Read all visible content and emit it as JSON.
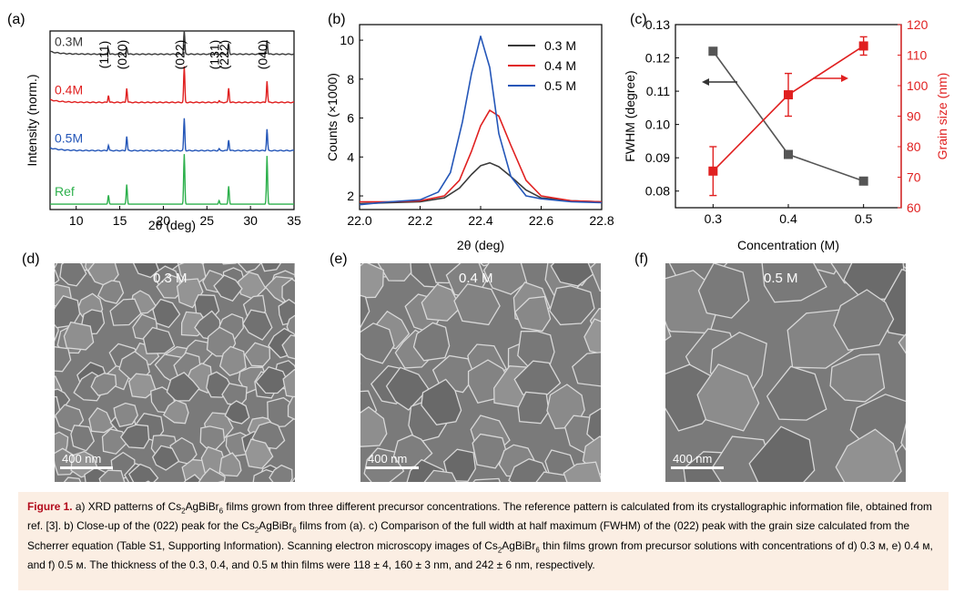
{
  "panel_labels": {
    "a": "(a)",
    "b": "(b)",
    "c": "(c)",
    "d": "(d)",
    "e": "(e)",
    "f": "(f)"
  },
  "chart_data": [
    {
      "type": "line",
      "panel": "(a)",
      "xlabel": "2θ (deg)",
      "ylabel": "Intensity (norm.)",
      "xlim": [
        7,
        35
      ],
      "xticks": [
        10,
        15,
        20,
        25,
        30,
        35
      ],
      "series": [
        {
          "name": "0.3M",
          "color": "#3a3a3a",
          "baseline": 0.87,
          "peaks": [
            [
              13.7,
              0.03
            ],
            [
              15.8,
              0.04
            ],
            [
              22.4,
              0.13
            ],
            [
              27.5,
              0.06
            ],
            [
              31.9,
              0.08
            ]
          ]
        },
        {
          "name": "0.4M",
          "color": "#e02020",
          "baseline": 0.6,
          "peaks": [
            [
              13.7,
              0.04
            ],
            [
              15.8,
              0.08
            ],
            [
              22.4,
              0.2
            ],
            [
              26.4,
              0.01
            ],
            [
              27.5,
              0.08
            ],
            [
              31.9,
              0.12
            ]
          ]
        },
        {
          "name": "0.5M",
          "color": "#2456b8",
          "baseline": 0.33,
          "peaks": [
            [
              13.7,
              0.03
            ],
            [
              15.8,
              0.08
            ],
            [
              22.4,
              0.18
            ],
            [
              26.4,
              0.01
            ],
            [
              27.5,
              0.06
            ],
            [
              31.9,
              0.12
            ]
          ]
        },
        {
          "name": "Ref",
          "color": "#2db04c",
          "baseline": 0.03,
          "peaks": [
            [
              13.7,
              0.05
            ],
            [
              15.8,
              0.11
            ],
            [
              22.4,
              0.28
            ],
            [
              26.4,
              0.02
            ],
            [
              27.5,
              0.1
            ],
            [
              31.9,
              0.27
            ]
          ]
        }
      ],
      "annotations": [
        {
          "text": "(111)",
          "x": 13.7
        },
        {
          "text": "(020)",
          "x": 15.8
        },
        {
          "text": "(022)",
          "x": 22.4
        },
        {
          "text": "(131)",
          "x": 26.4
        },
        {
          "text": "(222)",
          "x": 27.5
        },
        {
          "text": "(040)",
          "x": 31.9
        }
      ]
    },
    {
      "type": "line",
      "panel": "(b)",
      "xlabel": "2θ (deg)",
      "ylabel": "Counts (×1000)",
      "xlim": [
        22.0,
        22.8
      ],
      "ylim": [
        1.3,
        10.8
      ],
      "xticks": [
        22.0,
        22.2,
        22.4,
        22.6,
        22.8
      ],
      "yticks": [
        2,
        4,
        6,
        8,
        10
      ],
      "legend": "top-right",
      "series": [
        {
          "name": "0.3 M",
          "color": "#3a3a3a",
          "x": [
            22.0,
            22.1,
            22.2,
            22.28,
            22.33,
            22.37,
            22.4,
            22.43,
            22.46,
            22.5,
            22.55,
            22.6,
            22.7,
            22.8
          ],
          "values": [
            1.6,
            1.65,
            1.7,
            1.9,
            2.4,
            3.1,
            3.55,
            3.7,
            3.5,
            3.0,
            2.3,
            1.9,
            1.75,
            1.7
          ]
        },
        {
          "name": "0.4 M",
          "color": "#e02020",
          "x": [
            22.0,
            22.1,
            22.2,
            22.28,
            22.33,
            22.37,
            22.4,
            22.43,
            22.46,
            22.5,
            22.55,
            22.6,
            22.7,
            22.8
          ],
          "values": [
            1.7,
            1.7,
            1.75,
            2.0,
            2.8,
            4.3,
            5.6,
            6.4,
            6.1,
            4.6,
            2.8,
            2.0,
            1.75,
            1.7
          ]
        },
        {
          "name": "0.5 M",
          "color": "#2456b8",
          "x": [
            22.0,
            22.1,
            22.2,
            22.26,
            22.3,
            22.34,
            22.37,
            22.4,
            22.43,
            22.46,
            22.5,
            22.55,
            22.6,
            22.7,
            22.8
          ],
          "values": [
            1.55,
            1.7,
            1.8,
            2.2,
            3.2,
            5.8,
            8.3,
            10.2,
            8.6,
            5.2,
            3.0,
            2.0,
            1.85,
            1.7,
            1.65
          ]
        }
      ]
    },
    {
      "type": "line",
      "panel": "(c)",
      "xlabel": "Concentration (M)",
      "ylabel": "FWHM (degree)",
      "y2label": "Grain size (nm)",
      "xlim": [
        0.25,
        0.55
      ],
      "ylim": [
        0.075,
        0.13
      ],
      "y2lim": [
        60,
        120
      ],
      "xticks": [
        0.3,
        0.4,
        0.5
      ],
      "yticks": [
        0.08,
        0.09,
        0.1,
        0.11,
        0.12,
        0.13
      ],
      "y2ticks": [
        60,
        70,
        80,
        90,
        100,
        110,
        120
      ],
      "series": [
        {
          "name": "FWHM",
          "color": "#555555",
          "axis": "left",
          "x": [
            0.3,
            0.4,
            0.5
          ],
          "values": [
            0.122,
            0.091,
            0.083
          ]
        },
        {
          "name": "Grain size",
          "color": "#e02020",
          "axis": "right",
          "x": [
            0.3,
            0.4,
            0.5
          ],
          "values": [
            72,
            97,
            113
          ],
          "errors": [
            8,
            7,
            3
          ]
        }
      ]
    }
  ],
  "sem": [
    {
      "label": "0.3 M",
      "scale": "400 nm",
      "grain": 26
    },
    {
      "label": "0.4 M",
      "scale": "400 nm",
      "grain": 38
    },
    {
      "label": "0.5 M",
      "scale": "400 nm",
      "grain": 60
    }
  ],
  "caption": {
    "figure_label": "Figure 1.",
    "parts": [
      "a) XRD patterns of Cs",
      "2",
      "AgBiBr",
      "6",
      " films grown from three different precursor concentrations. The reference pattern is calculated from its crystallographic information file, obtained from ref. [3]. b) Close-up of the (022) peak for the Cs",
      "2",
      "AgBiBr",
      "6",
      " films from (a). c) Comparison of the full width at half maximum (FWHM) of the (022) peak with the grain size calculated from the Scherrer equation (Table S1, Supporting Information). Scanning electron microscopy images of Cs",
      "2",
      "AgBiBr",
      "6",
      " thin films grown from precursor solutions with concentrations of d) 0.3 м, e) 0.4 м, and f) 0.5 м. The thickness of the 0.3, 0.4, and 0.5 м thin films were 118 ± 4, 160 ± 3 nm, and 242 ± 6 nm, respectively."
    ]
  }
}
